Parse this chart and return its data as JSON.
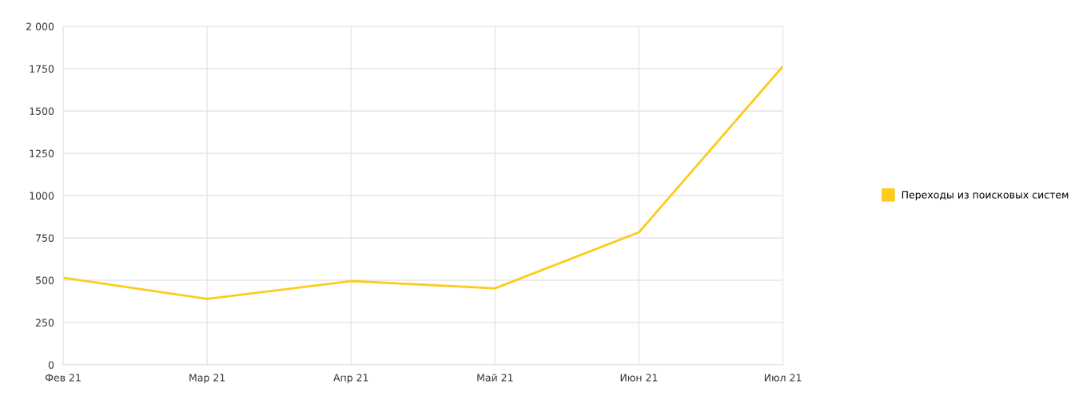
{
  "chart_data": {
    "type": "line",
    "categories": [
      "Фев 21",
      "Мар 21",
      "Апр 21",
      "Май 21",
      "Июн 21",
      "Июл 21"
    ],
    "series": [
      {
        "name": "Переходы из поисковых систем",
        "color": "#fccc1c",
        "values": [
          515,
          390,
          495,
          452,
          783,
          1764
        ]
      }
    ],
    "ylim": [
      0,
      2000
    ],
    "yticks": [
      0,
      250,
      500,
      750,
      1000,
      1250,
      1500,
      1750,
      {
        "value": 2000,
        "label": "2 000"
      }
    ],
    "grid": true,
    "legend": "right",
    "marker": "none",
    "line_style": "solid"
  }
}
